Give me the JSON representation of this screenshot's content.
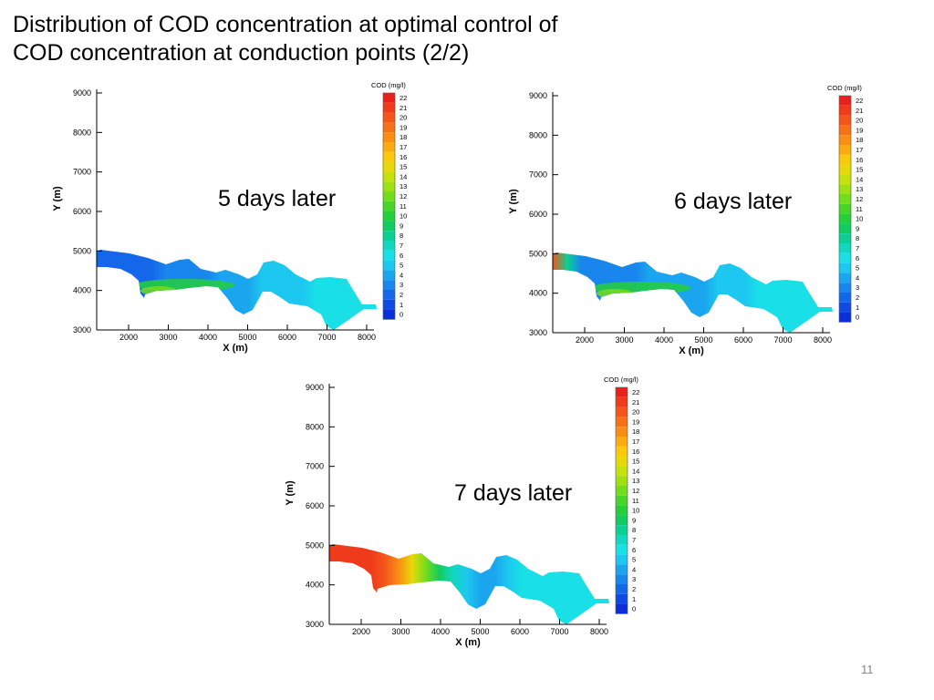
{
  "slide": {
    "title_line1": "Distribution of COD concentration at optimal control of",
    "title_line2": "COD concentration at conduction points (2/2)",
    "page_number": "11"
  },
  "axes": {
    "x_label": "X (m)",
    "y_label": "Y (m)",
    "x_ticks": [
      "2000",
      "3000",
      "4000",
      "5000",
      "6000",
      "7000",
      "8000"
    ],
    "y_ticks": [
      "9000",
      "8000",
      "7000",
      "6000",
      "5000",
      "4000",
      "3000"
    ]
  },
  "legend": {
    "title": "COD (mg/l)",
    "levels": [
      "22",
      "21",
      "20",
      "19",
      "18",
      "17",
      "16",
      "15",
      "14",
      "13",
      "12",
      "11",
      "10",
      "9",
      "8",
      "7",
      "6",
      "5",
      "4",
      "3",
      "2",
      "1",
      "0"
    ],
    "colors": [
      "#e8211c",
      "#ef3a1b",
      "#f4561a",
      "#f77118",
      "#fa8e14",
      "#fcab0f",
      "#fbc90b",
      "#e7d80a",
      "#c6e00c",
      "#9fe013",
      "#73dc1d",
      "#48d52a",
      "#25cf3b",
      "#12cc62",
      "#0ccf94",
      "#11d7c1",
      "#18e0e6",
      "#1cc8ef",
      "#1aa5ee",
      "#1886ec",
      "#1567ea",
      "#1149e4",
      "#0a2fd8"
    ]
  },
  "chart_data": [
    {
      "type": "heatmap",
      "title": "5 days later",
      "xlabel": "X (m)",
      "ylabel": "Y (m)",
      "xlim": [
        1000,
        8200
      ],
      "ylim": [
        3000,
        9300
      ],
      "legend_title": "COD (mg/l)",
      "colorbar_range": [
        0,
        22
      ],
      "regions": [
        {
          "zone": "upstream reach (X 1000-3000)",
          "cod_mg_l": 2
        },
        {
          "zone": "southern bank near X 2300-3500",
          "cod_mg_l": 10
        },
        {
          "zone": "middle reach (X 4000-6000)",
          "cod_mg_l": 5
        },
        {
          "zone": "downstream reach (X 6000-8200)",
          "cod_mg_l": 6
        }
      ]
    },
    {
      "type": "heatmap",
      "title": "6 days later",
      "xlabel": "X (m)",
      "ylabel": "Y (m)",
      "xlim": [
        1000,
        8200
      ],
      "ylim": [
        3000,
        9300
      ],
      "legend_title": "COD (mg/l)",
      "colorbar_range": [
        0,
        22
      ],
      "regions": [
        {
          "zone": "inflow point (X ~1200)",
          "cod_mg_l": 20
        },
        {
          "zone": "upstream reach (X 1500-3000)",
          "cod_mg_l": 3
        },
        {
          "zone": "southern bank near X 2300-3500",
          "cod_mg_l": 9
        },
        {
          "zone": "middle reach (X 4000-6000)",
          "cod_mg_l": 5
        },
        {
          "zone": "downstream reach (X 6000-8200)",
          "cod_mg_l": 6
        }
      ]
    },
    {
      "type": "heatmap",
      "title": "7 days later",
      "xlabel": "X (m)",
      "ylabel": "Y (m)",
      "xlim": [
        1000,
        8200
      ],
      "ylim": [
        3000,
        9300
      ],
      "legend_title": "COD (mg/l)",
      "colorbar_range": [
        0,
        22
      ],
      "regions": [
        {
          "zone": "upstream reach (X 1000-2500)",
          "cod_mg_l": 21
        },
        {
          "zone": "reach X 2500-3000",
          "cod_mg_l": 17
        },
        {
          "zone": "reach X 3000-3800",
          "cod_mg_l": 11
        },
        {
          "zone": "middle reach (X 4000-5000)",
          "cod_mg_l": 5
        },
        {
          "zone": "downstream reach (X 5000-8200)",
          "cod_mg_l": 6
        }
      ]
    }
  ]
}
